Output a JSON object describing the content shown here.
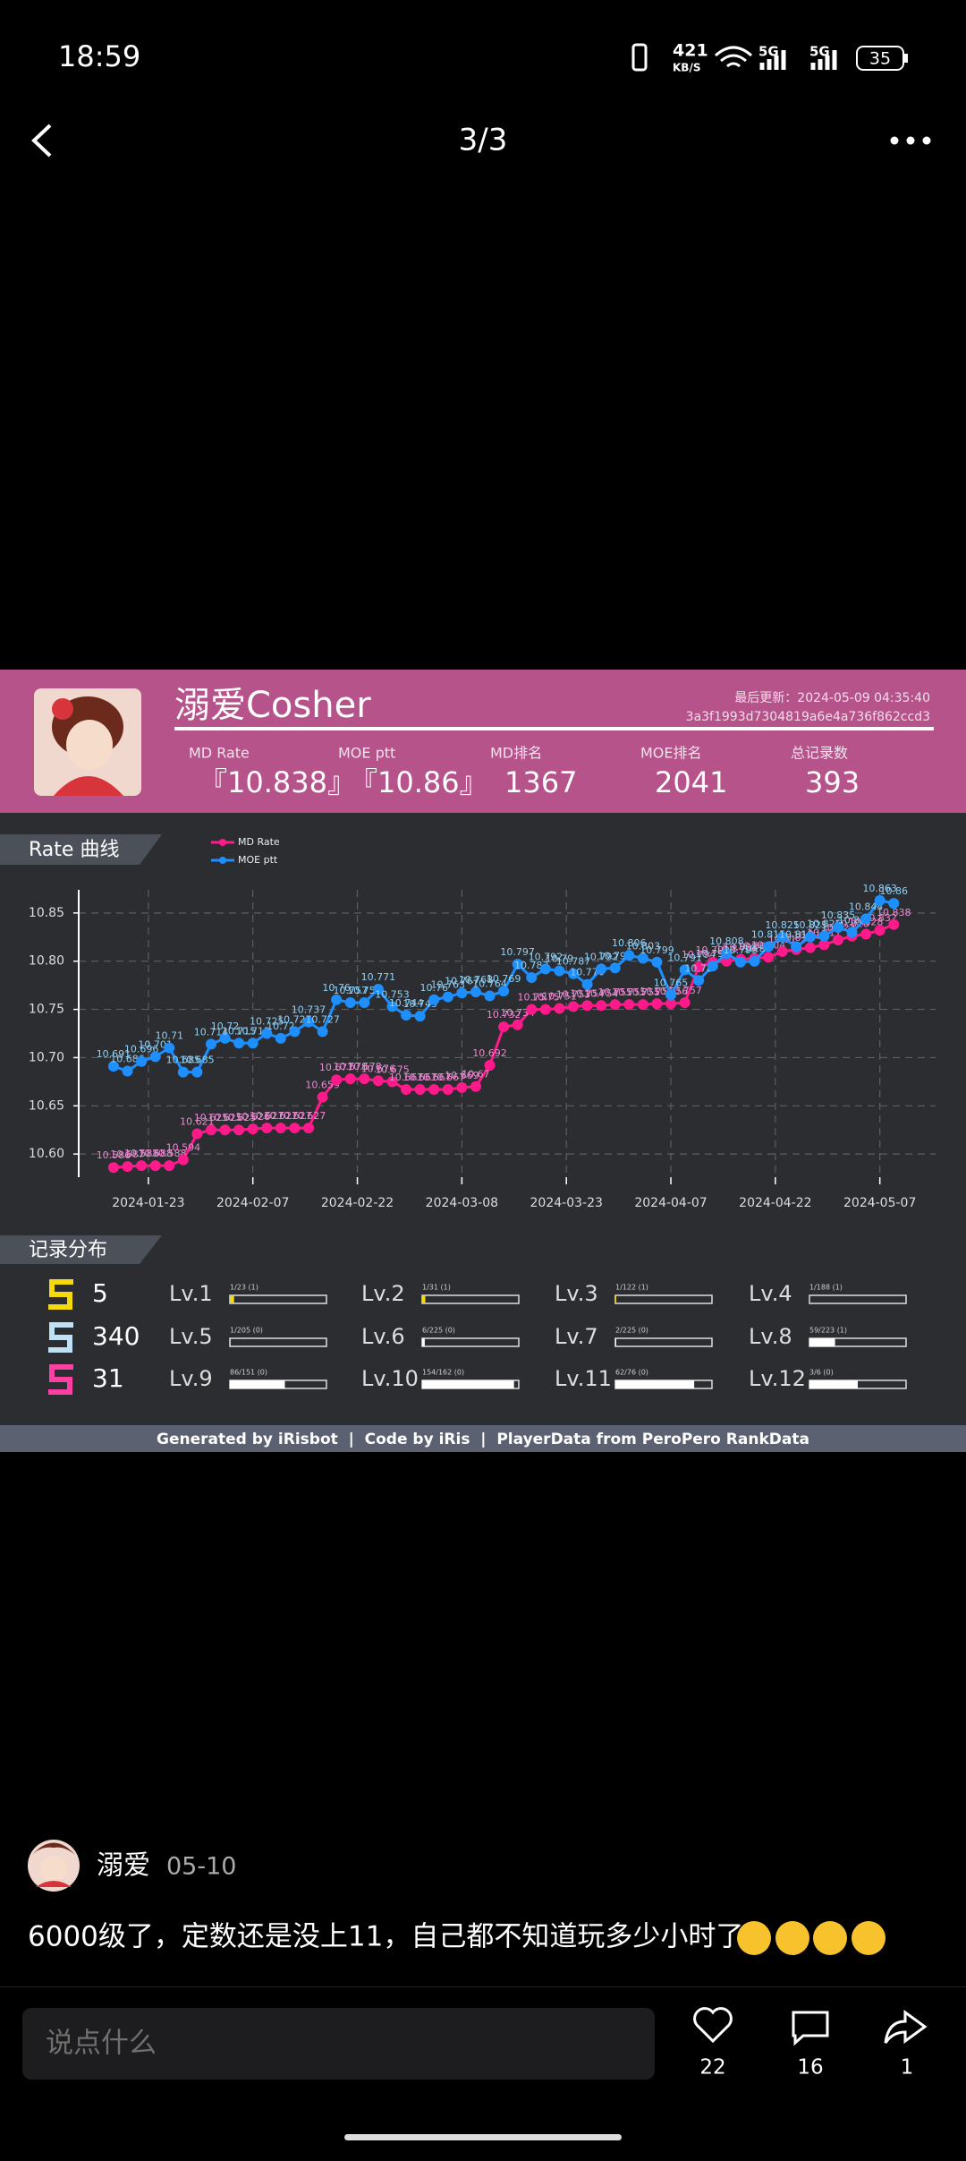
{
  "status_bar": {
    "time": "18:59",
    "net_speed": "421",
    "net_unit": "KB/S",
    "signal_1": "5G",
    "signal_2": "5G",
    "battery": "35"
  },
  "nav": {
    "title": "3/3"
  },
  "card": {
    "name": "溺爱Cosher",
    "updated": "最后更新：2024-05-09 04:35:40",
    "id": "3a3f1993d7304819a6e4a736f862ccd3",
    "stats": [
      {
        "label": "MD Rate",
        "value": "『10.838』"
      },
      {
        "label": "MOE ptt",
        "value": "『10.86』"
      },
      {
        "label": "MD排名",
        "value": "1367"
      },
      {
        "label": "MOE排名",
        "value": "2041"
      },
      {
        "label": "总记录数",
        "value": "393"
      }
    ]
  },
  "chart_data": {
    "type": "line",
    "tab": "Rate 曲线",
    "x": [
      "2024-01-18",
      "2024-01-20",
      "2024-01-22",
      "2024-01-24",
      "2024-01-26",
      "2024-01-28",
      "2024-01-30",
      "2024-02-01",
      "2024-02-03",
      "2024-02-05",
      "2024-02-07",
      "2024-02-09",
      "2024-02-11",
      "2024-02-13",
      "2024-02-15",
      "2024-02-17",
      "2024-02-19",
      "2024-02-21",
      "2024-02-23",
      "2024-02-25",
      "2024-02-27",
      "2024-02-29",
      "2024-03-02",
      "2024-03-04",
      "2024-03-06",
      "2024-03-08",
      "2024-03-10",
      "2024-03-12",
      "2024-03-14",
      "2024-03-16",
      "2024-03-18",
      "2024-03-20",
      "2024-03-22",
      "2024-03-24",
      "2024-03-26",
      "2024-03-28",
      "2024-03-30",
      "2024-04-01",
      "2024-04-03",
      "2024-04-05",
      "2024-04-07",
      "2024-04-09",
      "2024-04-11",
      "2024-04-13",
      "2024-04-15",
      "2024-04-17",
      "2024-04-19",
      "2024-04-21",
      "2024-04-23",
      "2024-04-25",
      "2024-04-27",
      "2024-04-29",
      "2024-05-01",
      "2024-05-03",
      "2024-05-05",
      "2024-05-07",
      "2024-05-09"
    ],
    "series": [
      {
        "name": "MD Rate",
        "color": "#ff1a8c",
        "label_color": "#e98ad0",
        "values": [
          10.586,
          10.587,
          10.588,
          10.588,
          10.588,
          10.594,
          10.621,
          10.625,
          10.625,
          10.625,
          10.626,
          10.627,
          10.627,
          10.627,
          10.627,
          10.659,
          10.677,
          10.678,
          10.678,
          10.676,
          10.675,
          10.667,
          10.667,
          10.667,
          10.667,
          10.669,
          10.67,
          10.692,
          10.732,
          10.734,
          10.75,
          10.75,
          10.751,
          10.753,
          10.754,
          10.754,
          10.755,
          10.755,
          10.755,
          10.756,
          10.756,
          10.757,
          10.794,
          10.799,
          10.8,
          10.802,
          10.803,
          10.804,
          10.81,
          10.812,
          10.814,
          10.817,
          10.822,
          10.826,
          10.828,
          10.832,
          10.838
        ]
      },
      {
        "name": "MOE ptt",
        "color": "#1e8fff",
        "label_color": "#8fd0f5",
        "values": [
          10.691,
          10.686,
          10.696,
          10.701,
          10.71,
          10.685,
          10.685,
          10.714,
          10.72,
          10.715,
          10.715,
          10.725,
          10.72,
          10.727,
          10.737,
          10.727,
          10.76,
          10.757,
          10.757,
          10.771,
          10.753,
          10.744,
          10.743,
          10.76,
          10.763,
          10.767,
          10.768,
          10.764,
          10.769,
          10.797,
          10.783,
          10.792,
          10.79,
          10.787,
          10.776,
          10.792,
          10.793,
          10.806,
          10.803,
          10.799,
          10.765,
          10.791,
          10.78,
          10.795,
          10.808,
          10.799,
          10.8,
          10.815,
          10.825,
          10.815,
          10.825,
          10.826,
          10.835,
          10.83,
          10.844,
          10.863,
          10.86
        ]
      }
    ],
    "xlim": [
      "2024-01-13",
      "2024-05-15"
    ],
    "xticks": [
      "2024-01-23",
      "2024-02-07",
      "2024-02-22",
      "2024-03-08",
      "2024-03-23",
      "2024-04-07",
      "2024-04-22",
      "2024-05-07"
    ],
    "ylim": [
      10.576,
      10.874
    ],
    "yticks": [
      {
        "value": 10.6,
        "label": "10.60"
      },
      10.65,
      {
        "value": 10.7,
        "label": "10.70"
      },
      10.75,
      {
        "value": 10.8,
        "label": "10.80"
      },
      10.85
    ],
    "grid": true,
    "legend": "upper left"
  },
  "records": {
    "tab": "记录分布",
    "rows": [
      {
        "count": "5",
        "icon_color": "#f5d90a"
      },
      {
        "count": "340",
        "icon_color": "#bfe0f5"
      },
      {
        "count": "31",
        "icon_color": "#ff3fa4"
      }
    ],
    "levels": [
      {
        "name": "Lv.1",
        "label": "1/23 (1)",
        "done": 1,
        "total": 23
      },
      {
        "name": "Lv.2",
        "label": "1/31 (1)",
        "done": 1,
        "total": 31
      },
      {
        "name": "Lv.3",
        "label": "1/122 (1)",
        "done": 1,
        "total": 122
      },
      {
        "name": "Lv.4",
        "label": "1/188 (1)",
        "done": 1,
        "total": 188
      },
      {
        "name": "Lv.5",
        "label": "1/205 (0)",
        "done": 1,
        "total": 205
      },
      {
        "name": "Lv.6",
        "label": "6/225 (0)",
        "done": 6,
        "total": 225
      },
      {
        "name": "Lv.7",
        "label": "2/225 (0)",
        "done": 2,
        "total": 225
      },
      {
        "name": "Lv.8",
        "label": "59/223 (1)",
        "done": 59,
        "total": 223
      },
      {
        "name": "Lv.9",
        "label": "86/151 (0)",
        "done": 86,
        "total": 151
      },
      {
        "name": "Lv.10",
        "label": "154/162 (0)",
        "done": 154,
        "total": 162
      },
      {
        "name": "Lv.11",
        "label": "62/76 (0)",
        "done": 62,
        "total": 76
      },
      {
        "name": "Lv.12",
        "label": "3/6 (0)",
        "done": 3,
        "total": 6
      }
    ]
  },
  "footer": "Generated by iRisbot  |  Code by iRis  |  PlayerData from PeroPero RankData",
  "post": {
    "author": "溺爱",
    "date": "05-10",
    "text": "6000级了，定数还是没上11，自己都不知道玩多少小时了"
  },
  "input": {
    "placeholder": "说点什么"
  },
  "actions": {
    "likes": "22",
    "comments": "16",
    "shares": "1"
  }
}
